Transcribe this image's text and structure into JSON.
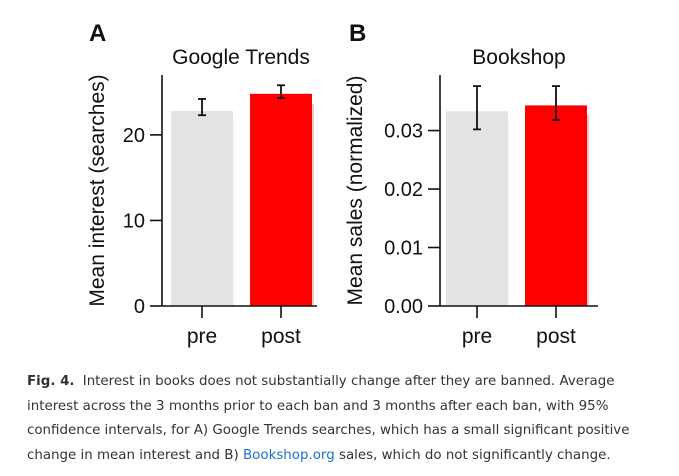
{
  "chart_data": [
    {
      "type": "bar",
      "panel_label": "A",
      "title": "Google Trends",
      "ylabel": "Mean interest (searches)",
      "xlabel": "",
      "categories": [
        "pre",
        "post"
      ],
      "values": [
        22.8,
        24.8
      ],
      "ci_low": [
        22.3,
        24.3
      ],
      "ci_high": [
        24.2,
        25.8
      ],
      "bar_colors": [
        "#e4e2e4",
        "#ff0000"
      ],
      "ylim": [
        0,
        27
      ],
      "yticks": [
        0,
        10,
        20
      ],
      "ytick_labels": [
        "0",
        "10",
        "20"
      ],
      "grid": false
    },
    {
      "type": "bar",
      "panel_label": "B",
      "title": "Bookshop",
      "ylabel": "Mean sales (normalized)",
      "xlabel": "",
      "categories": [
        "pre",
        "post"
      ],
      "values": [
        0.0333,
        0.0343
      ],
      "ci_low": [
        0.0302,
        0.0318
      ],
      "ci_high": [
        0.0376,
        0.0376
      ],
      "bar_colors": [
        "#e4e2e4",
        "#ff0000"
      ],
      "ylim": [
        0,
        0.0395
      ],
      "yticks": [
        0,
        0.01,
        0.02,
        0.03
      ],
      "ytick_labels": [
        "0.00",
        "0.01",
        "0.02",
        "0.03"
      ],
      "grid": false
    }
  ],
  "caption": {
    "label": "Fig. 4.",
    "text": "Interest in books does not substantially change after they are banned. Average interest across the 3 months prior to each ban and 3 months after each ban, with 95% confidence intervals, for A) Google Trends searches, which has a small significant positive change in mean interest and B)",
    "link_text": "Bookshop.org",
    "text_after": "sales, which do not significantly change."
  }
}
